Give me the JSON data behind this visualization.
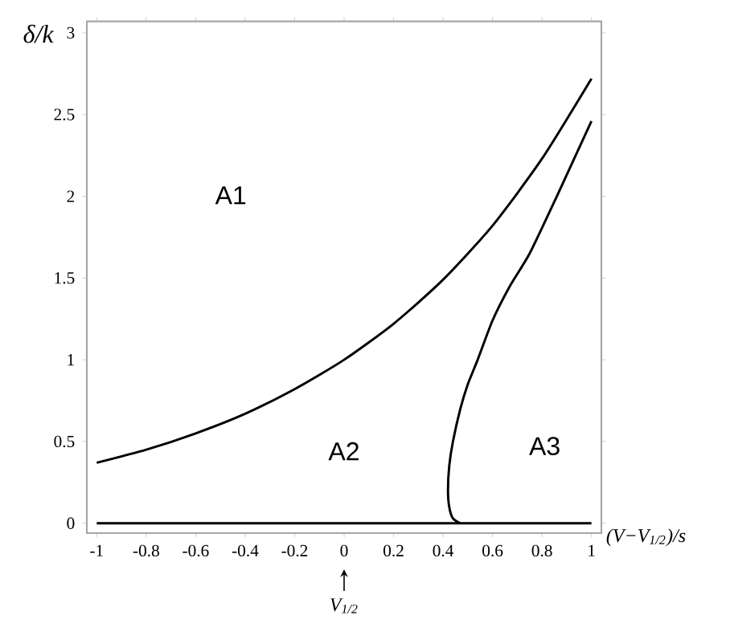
{
  "chart_data": {
    "type": "line",
    "xlabel": "(V−V$_{1/2}$)/s",
    "ylabel": "δ/k",
    "xlim": [
      -1.04,
      1.04
    ],
    "ylim": [
      -0.06,
      3.07
    ],
    "xticks": [
      -1,
      -0.8,
      -0.6,
      -0.4,
      -0.2,
      0,
      0.2,
      0.4,
      0.6,
      0.8,
      1
    ],
    "yticks": [
      0,
      0.5,
      1,
      1.5,
      2,
      2.5,
      3
    ],
    "grid": false,
    "marker": "none",
    "line_style": "solid",
    "series": [
      {
        "color": "#000000",
        "x": [
          -1,
          -0.8,
          -0.6,
          -0.4,
          -0.2,
          0,
          0.2,
          0.4,
          0.6,
          0.8,
          1
        ],
        "values": [
          0.37,
          0.45,
          0.55,
          0.67,
          0.82,
          1.0,
          1.22,
          1.49,
          1.82,
          2.23,
          2.72
        ]
      },
      {
        "color": "#000000",
        "x": [
          0.47,
          0.44,
          0.425,
          0.42,
          0.425,
          0.44,
          0.47,
          0.5,
          0.54,
          0.6,
          0.67,
          0.75,
          0.86,
          1
        ],
        "values": [
          0,
          0.03,
          0.1,
          0.2,
          0.35,
          0.5,
          0.7,
          0.85,
          1.0,
          1.24,
          1.45,
          1.65,
          2.0,
          2.46
        ]
      },
      {
        "color": "#000000",
        "x": [
          -1,
          1
        ],
        "values": [
          0,
          0
        ]
      }
    ],
    "annotations": [
      "A1",
      "A2",
      "A3",
      "V$_{1/2}$"
    ]
  }
}
